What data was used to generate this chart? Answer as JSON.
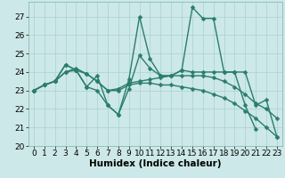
{
  "xlabel": "Humidex (Indice chaleur)",
  "x": [
    0,
    1,
    2,
    3,
    4,
    5,
    6,
    7,
    8,
    9,
    10,
    11,
    12,
    13,
    14,
    15,
    16,
    17,
    18,
    19,
    20,
    21,
    22,
    23
  ],
  "series": [
    [
      23.0,
      23.3,
      23.5,
      24.4,
      24.1,
      23.2,
      23.0,
      22.2,
      21.7,
      23.6,
      27.0,
      24.7,
      23.8,
      23.8,
      24.1,
      27.5,
      26.9,
      26.9,
      24.0,
      24.0,
      22.2,
      20.9,
      null,
      null
    ],
    [
      23.0,
      23.3,
      23.5,
      24.4,
      24.1,
      23.2,
      23.8,
      22.2,
      21.7,
      23.1,
      24.9,
      24.2,
      23.8,
      23.8,
      24.1,
      24.0,
      24.0,
      24.0,
      24.0,
      24.0,
      24.0,
      22.2,
      22.5,
      20.5
    ],
    [
      23.0,
      23.3,
      23.5,
      24.0,
      24.2,
      23.9,
      23.5,
      23.0,
      23.1,
      23.4,
      23.5,
      23.6,
      23.7,
      23.8,
      23.8,
      23.8,
      23.8,
      23.7,
      23.5,
      23.2,
      22.8,
      22.3,
      22.0,
      21.5
    ],
    [
      23.0,
      23.3,
      23.5,
      24.0,
      24.1,
      23.9,
      23.5,
      23.0,
      23.0,
      23.3,
      23.4,
      23.4,
      23.3,
      23.3,
      23.2,
      23.1,
      23.0,
      22.8,
      22.6,
      22.3,
      21.9,
      21.5,
      21.0,
      20.5
    ]
  ],
  "line_color": "#2a7d6e",
  "marker": "D",
  "marker_size": 2.5,
  "linewidth": 1.0,
  "ylim": [
    20,
    27.8
  ],
  "yticks": [
    20,
    21,
    22,
    23,
    24,
    25,
    26,
    27
  ],
  "xlim": [
    -0.5,
    23.5
  ],
  "xticks": [
    0,
    1,
    2,
    3,
    4,
    5,
    6,
    7,
    8,
    9,
    10,
    11,
    12,
    13,
    14,
    15,
    16,
    17,
    18,
    19,
    20,
    21,
    22,
    23
  ],
  "bg_color": "#cde8e8",
  "grid_color": "#aed4d4",
  "xlabel_fontsize": 7.5,
  "tick_fontsize": 6.5
}
